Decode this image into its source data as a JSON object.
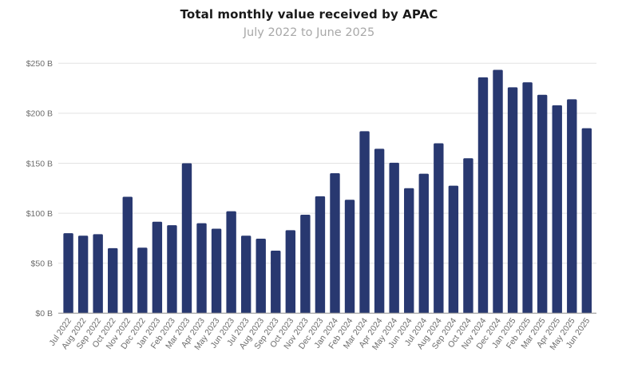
{
  "chart_data": {
    "type": "bar",
    "title": "Total monthly value received by APAC",
    "subtitle": "July 2022 to June 2025",
    "xlabel": "",
    "ylabel": "",
    "unit_prefix": "$",
    "unit_suffix": " B",
    "ylim": [
      0,
      250
    ],
    "yticks": [
      0,
      50,
      100,
      150,
      200,
      250
    ],
    "ytick_labels": [
      "$0 B",
      "$50 B",
      "$100 B",
      "$150 B",
      "$200 B",
      "$250 B"
    ],
    "grid": true,
    "legend": "none",
    "bar_color": "#283870",
    "categories": [
      "Jul 2022",
      "Aug 2022",
      "Sep 2022",
      "Oct 2022",
      "Nov 2022",
      "Dec 2022",
      "Jan 2023",
      "Feb 2023",
      "Mar 2023",
      "Apr 2023",
      "May 2023",
      "Jun 2023",
      "Jul 2023",
      "Aug 2023",
      "Sep 2023",
      "Oct 2023",
      "Nov 2023",
      "Dec 2023",
      "Jan 2024",
      "Feb 2024",
      "Mar 2024",
      "Apr 2024",
      "May 2024",
      "Jun 2024",
      "Jul 2024",
      "Aug 2024",
      "Sep 2024",
      "Oct 2024",
      "Nov 2024",
      "Dec 2024",
      "Jan 2025",
      "Feb 2025",
      "Mar 2025",
      "Apr 2025",
      "May 2025",
      "Jun 2025"
    ],
    "values": [
      80,
      77.5,
      79,
      65,
      116.5,
      65.5,
      91.5,
      88,
      150,
      90,
      84.5,
      102,
      77.5,
      74.5,
      62.5,
      83,
      98.5,
      117,
      140,
      113.5,
      182,
      164.5,
      150.5,
      125,
      139.5,
      170,
      127.5,
      155,
      236,
      243.5,
      226,
      231,
      218.5,
      208,
      214,
      185
    ]
  }
}
